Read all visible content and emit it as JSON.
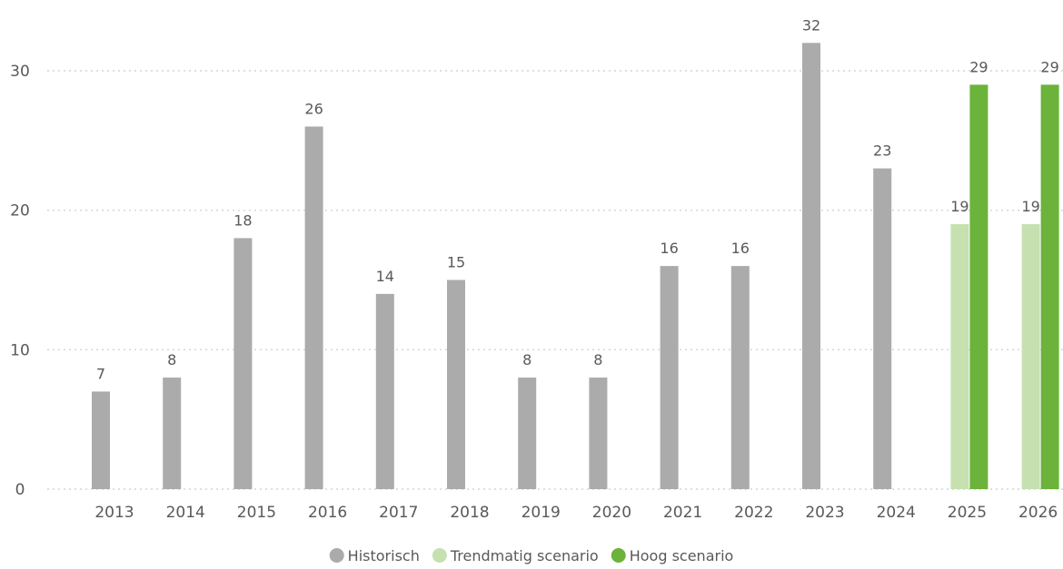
{
  "chart_data": {
    "type": "bar",
    "categories": [
      "2013",
      "2014",
      "2015",
      "2016",
      "2017",
      "2018",
      "2019",
      "2020",
      "2021",
      "2022",
      "2023",
      "2024",
      "2025",
      "2026"
    ],
    "series": [
      {
        "name": "Historisch",
        "color": "#ababab",
        "values": [
          7,
          8,
          18,
          26,
          14,
          15,
          8,
          8,
          16,
          16,
          32,
          23,
          null,
          null
        ]
      },
      {
        "name": "Trendmatig scenario",
        "color": "#c6e0b0",
        "values": [
          null,
          null,
          null,
          null,
          null,
          null,
          null,
          null,
          null,
          null,
          null,
          null,
          19,
          19
        ]
      },
      {
        "name": "Hoog scenario",
        "color": "#6bb33b",
        "values": [
          null,
          null,
          null,
          null,
          null,
          null,
          null,
          null,
          null,
          null,
          null,
          null,
          29,
          29
        ]
      }
    ],
    "data_labels": true,
    "title": "",
    "xlabel": "",
    "ylabel": "",
    "ylim": [
      0,
      30
    ],
    "yticks": [
      0,
      10,
      20,
      30
    ],
    "grid": "horizontal-dotted",
    "legend_position": "bottom-center"
  }
}
